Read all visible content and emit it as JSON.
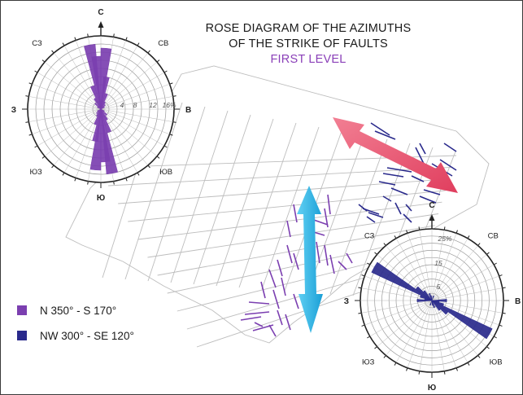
{
  "title": {
    "line1": "ROSE DIAGRAM OF THE AZIMUTHS",
    "line2": "OF THE STRIKE OF FAULTS",
    "line3": "FIRST LEVEL"
  },
  "colors": {
    "purple": "#7b3fb0",
    "navy": "#2a2a8c",
    "red_arrow": "#e9536f",
    "blue_arrow": "#2fb7e6",
    "grid": "#b5b5b5"
  },
  "rose_left": {
    "labels": {
      "n": "С",
      "ne": "СВ",
      "e": "В",
      "se": "ЮВ",
      "s": "Ю",
      "sw": "ЮЗ",
      "w": "З",
      "nw": "СЗ"
    },
    "scale": [
      "4",
      "8",
      "12",
      "16%"
    ],
    "petals": [
      {
        "azimuth": 350,
        "value": 16
      },
      {
        "azimuth": 355,
        "value": 13
      },
      {
        "azimuth": 5,
        "value": 15
      },
      {
        "azimuth": 10,
        "value": 8
      },
      {
        "azimuth": 340,
        "value": 6
      },
      {
        "azimuth": 20,
        "value": 4
      },
      {
        "azimuth": 330,
        "value": 3
      },
      {
        "azimuth": 30,
        "value": 2
      },
      {
        "azimuth": 45,
        "value": 1.5
      },
      {
        "azimuth": 315,
        "value": 2
      },
      {
        "azimuth": 60,
        "value": 1
      },
      {
        "azimuth": 300,
        "value": 1
      }
    ]
  },
  "rose_right": {
    "labels": {
      "n": "С",
      "ne": "СВ",
      "e": "В",
      "se": "ЮВ",
      "s": "Ю",
      "sw": "ЮЗ",
      "w": "З",
      "nw": "СЗ"
    },
    "scale": [
      "5",
      "15",
      "25%"
    ],
    "petals": [
      {
        "azimuth": 300,
        "value": 27
      },
      {
        "azimuth": 310,
        "value": 8
      },
      {
        "azimuth": 320,
        "value": 5
      },
      {
        "azimuth": 290,
        "value": 5
      },
      {
        "azimuth": 280,
        "value": 3
      },
      {
        "azimuth": 340,
        "value": 3
      },
      {
        "azimuth": 270,
        "value": 6
      },
      {
        "azimuth": 20,
        "value": 2
      },
      {
        "azimuth": 350,
        "value": 2
      }
    ]
  },
  "legend": [
    {
      "color": "#7b3fb0",
      "label": "N 350° - S 170°"
    },
    {
      "color": "#2a2a8c",
      "label": "NW 300° - SE 120°"
    }
  ]
}
